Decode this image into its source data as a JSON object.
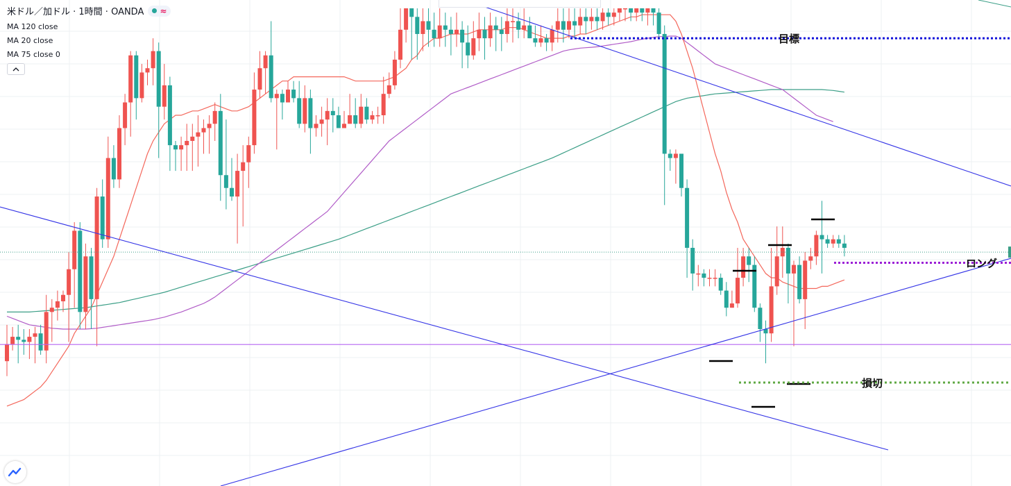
{
  "header": {
    "symbol_title": "米ドル／加ドル · 1時間 · OANDA",
    "status_icon": "dot-and-wave-icon",
    "indicators": [
      {
        "label": "MA 120 close"
      },
      {
        "label": "MA 20 close"
      },
      {
        "label": "MA 75 close 0"
      }
    ],
    "collapse_icon": "chevron-up-icon",
    "logo_icon": "tradingview-logo-icon"
  },
  "colors": {
    "up": "#ef5350",
    "down": "#26a69a",
    "ma20": "#f4675b",
    "ma75": "#b05bc7",
    "ma120": "#3a9e86",
    "trendline": "#3333e6",
    "support": "#b565f2",
    "target": "#1111d9",
    "long": "#9b1fd6",
    "stop": "#5fa843",
    "grid": "#eef0f3"
  },
  "chart_data": {
    "type": "candlestick",
    "yscale": {
      "top": 1.0,
      "bottom": 0.0
    },
    "annotations": [
      {
        "name": "target-line",
        "label": "目標",
        "style": "dotted",
        "y": 0.93
      },
      {
        "name": "long-line",
        "label": "ロング",
        "style": "dotted",
        "y": 0.405
      },
      {
        "name": "stop-line",
        "label": "損切",
        "style": "dotted",
        "y": 0.125
      }
    ],
    "support_level": 0.214,
    "current_price_level": 0.43,
    "candles": [
      [
        0.175,
        0.215,
        0.14,
        0.26
      ],
      [
        0.215,
        0.232,
        0.2,
        0.255
      ],
      [
        0.232,
        0.225,
        0.17,
        0.26
      ],
      [
        0.225,
        0.22,
        0.19,
        0.25
      ],
      [
        0.22,
        0.232,
        0.18,
        0.25
      ],
      [
        0.232,
        0.24,
        0.17,
        0.255
      ],
      [
        0.24,
        0.2,
        0.19,
        0.26
      ],
      [
        0.2,
        0.29,
        0.17,
        0.33
      ],
      [
        0.29,
        0.3,
        0.22,
        0.32
      ],
      [
        0.3,
        0.315,
        0.27,
        0.34
      ],
      [
        0.315,
        0.33,
        0.29,
        0.34
      ],
      [
        0.33,
        0.39,
        0.22,
        0.43
      ],
      [
        0.39,
        0.48,
        0.3,
        0.5
      ],
      [
        0.48,
        0.29,
        0.25,
        0.5
      ],
      [
        0.29,
        0.42,
        0.25,
        0.45
      ],
      [
        0.42,
        0.32,
        0.25,
        0.44
      ],
      [
        0.32,
        0.56,
        0.21,
        0.58
      ],
      [
        0.56,
        0.46,
        0.44,
        0.6
      ],
      [
        0.46,
        0.65,
        0.44,
        0.7
      ],
      [
        0.65,
        0.6,
        0.58,
        0.68
      ],
      [
        0.6,
        0.72,
        0.58,
        0.75
      ],
      [
        0.72,
        0.78,
        0.68,
        0.8
      ],
      [
        0.78,
        0.89,
        0.7,
        0.9
      ],
      [
        0.89,
        0.79,
        0.74,
        0.9
      ],
      [
        0.79,
        0.85,
        0.78,
        0.87
      ],
      [
        0.85,
        0.86,
        0.82,
        0.88
      ],
      [
        0.86,
        0.9,
        0.82,
        0.93
      ],
      [
        0.9,
        0.77,
        0.65,
        0.92
      ],
      [
        0.77,
        0.82,
        0.74,
        0.87
      ],
      [
        0.82,
        0.68,
        0.62,
        0.84
      ],
      [
        0.68,
        0.67,
        0.62,
        0.69
      ],
      [
        0.67,
        0.68,
        0.62,
        0.7
      ],
      [
        0.68,
        0.69,
        0.62,
        0.73
      ],
      [
        0.69,
        0.7,
        0.62,
        0.73
      ],
      [
        0.7,
        0.71,
        0.63,
        0.75
      ],
      [
        0.71,
        0.72,
        0.66,
        0.74
      ],
      [
        0.72,
        0.73,
        0.66,
        0.75
      ],
      [
        0.73,
        0.76,
        0.69,
        0.78
      ],
      [
        0.76,
        0.61,
        0.55,
        0.8
      ],
      [
        0.61,
        0.58,
        0.53,
        0.74
      ],
      [
        0.58,
        0.56,
        0.55,
        0.65
      ],
      [
        0.56,
        0.62,
        0.45,
        0.66
      ],
      [
        0.62,
        0.64,
        0.49,
        0.68
      ],
      [
        0.64,
        0.68,
        0.58,
        0.7
      ],
      [
        0.68,
        0.81,
        0.66,
        0.85
      ],
      [
        0.81,
        0.86,
        0.79,
        0.9
      ],
      [
        0.86,
        0.89,
        0.8,
        0.9
      ],
      [
        0.89,
        0.79,
        0.78,
        0.97
      ],
      [
        0.79,
        0.8,
        0.67,
        0.81
      ],
      [
        0.8,
        0.78,
        0.74,
        0.81
      ],
      [
        0.78,
        0.81,
        0.78,
        0.83
      ],
      [
        0.81,
        0.79,
        0.78,
        0.83
      ],
      [
        0.79,
        0.73,
        0.72,
        0.83
      ],
      [
        0.73,
        0.79,
        0.71,
        0.82
      ],
      [
        0.79,
        0.72,
        0.66,
        0.81
      ],
      [
        0.72,
        0.73,
        0.7,
        0.75
      ],
      [
        0.73,
        0.74,
        0.7,
        0.77
      ],
      [
        0.74,
        0.76,
        0.68,
        0.79
      ],
      [
        0.76,
        0.75,
        0.71,
        0.79
      ],
      [
        0.75,
        0.72,
        0.72,
        0.77
      ],
      [
        0.72,
        0.73,
        0.72,
        0.76
      ],
      [
        0.73,
        0.75,
        0.73,
        0.8
      ],
      [
        0.75,
        0.73,
        0.72,
        0.79
      ],
      [
        0.73,
        0.77,
        0.72,
        0.8
      ],
      [
        0.77,
        0.74,
        0.73,
        0.79
      ],
      [
        0.74,
        0.75,
        0.73,
        0.76
      ],
      [
        0.75,
        0.75,
        0.73,
        0.77
      ],
      [
        0.75,
        0.8,
        0.73,
        0.84
      ],
      [
        0.8,
        0.82,
        0.79,
        0.85
      ],
      [
        0.82,
        0.88,
        0.81,
        0.9
      ],
      [
        0.88,
        0.95,
        0.86,
        1.0
      ],
      [
        0.95,
        1.0,
        0.92,
        1.0
      ],
      [
        1.0,
        0.98,
        0.88,
        1.0
      ],
      [
        0.98,
        0.94,
        0.88,
        1.0
      ],
      [
        0.94,
        0.97,
        0.9,
        1.0
      ],
      [
        0.97,
        0.95,
        0.91,
        1.0
      ],
      [
        0.95,
        0.93,
        0.91,
        0.99
      ],
      [
        0.93,
        0.96,
        0.91,
        1.0
      ],
      [
        0.96,
        0.95,
        0.91,
        0.99
      ],
      [
        0.95,
        0.94,
        0.89,
        0.98
      ],
      [
        0.94,
        0.95,
        0.91,
        0.99
      ],
      [
        0.95,
        0.92,
        0.86,
        0.97
      ],
      [
        0.92,
        0.89,
        0.86,
        0.96
      ],
      [
        0.89,
        0.93,
        0.88,
        0.97
      ],
      [
        0.93,
        0.95,
        0.9,
        0.99
      ],
      [
        0.95,
        0.93,
        0.88,
        0.98
      ],
      [
        0.93,
        0.96,
        0.91,
        0.99
      ],
      [
        0.96,
        0.95,
        0.9,
        0.98
      ],
      [
        0.95,
        0.94,
        0.9,
        0.98
      ],
      [
        0.94,
        0.97,
        0.92,
        1.0
      ],
      [
        0.97,
        0.97,
        0.92,
        1.0
      ],
      [
        0.97,
        0.95,
        0.93,
        0.99
      ],
      [
        0.95,
        0.96,
        0.93,
        1.0
      ],
      [
        0.96,
        0.93,
        0.93,
        0.98
      ],
      [
        0.93,
        0.92,
        0.91,
        0.96
      ],
      [
        0.92,
        0.93,
        0.91,
        0.96
      ],
      [
        0.93,
        0.92,
        0.9,
        0.94
      ],
      [
        0.92,
        0.95,
        0.9,
        0.96
      ],
      [
        0.95,
        0.97,
        0.92,
        1.0
      ],
      [
        0.97,
        0.95,
        0.92,
        1.0
      ],
      [
        0.95,
        0.97,
        0.93,
        1.0
      ],
      [
        0.97,
        0.96,
        0.93,
        1.0
      ],
      [
        0.96,
        0.98,
        0.94,
        1.0
      ],
      [
        0.98,
        0.97,
        0.94,
        1.0
      ],
      [
        0.97,
        0.98,
        0.95,
        1.0
      ],
      [
        0.98,
        0.97,
        0.95,
        1.0
      ],
      [
        0.97,
        0.99,
        0.95,
        1.0
      ],
      [
        0.99,
        0.98,
        0.96,
        1.0
      ],
      [
        0.98,
        0.99,
        0.96,
        1.0
      ],
      [
        0.99,
        1.0,
        0.97,
        1.0
      ],
      [
        1.0,
        1.0,
        0.97,
        1.0
      ],
      [
        1.0,
        0.99,
        0.97,
        1.0
      ],
      [
        0.99,
        1.0,
        0.97,
        1.0
      ],
      [
        1.0,
        0.99,
        0.97,
        1.0
      ],
      [
        0.99,
        1.0,
        0.96,
        1.0
      ],
      [
        1.0,
        0.99,
        0.96,
        1.0
      ],
      [
        0.99,
        0.94,
        0.93,
        1.0
      ],
      [
        0.94,
        0.66,
        0.54,
        0.96
      ],
      [
        0.66,
        0.65,
        0.62,
        0.67
      ],
      [
        0.65,
        0.66,
        0.59,
        0.67
      ],
      [
        0.66,
        0.58,
        0.56,
        0.66
      ],
      [
        0.58,
        0.44,
        0.37,
        0.6
      ],
      [
        0.44,
        0.38,
        0.34,
        0.46
      ],
      [
        0.38,
        0.38,
        0.35,
        0.4
      ],
      [
        0.38,
        0.37,
        0.35,
        0.39
      ],
      [
        0.37,
        0.37,
        0.35,
        0.39
      ],
      [
        0.37,
        0.37,
        0.35,
        0.39
      ],
      [
        0.37,
        0.34,
        0.33,
        0.38
      ],
      [
        0.34,
        0.3,
        0.28,
        0.36
      ],
      [
        0.3,
        0.31,
        0.3,
        0.34
      ],
      [
        0.31,
        0.37,
        0.3,
        0.44
      ],
      [
        0.37,
        0.42,
        0.35,
        0.44
      ],
      [
        0.42,
        0.4,
        0.36,
        0.44
      ],
      [
        0.4,
        0.3,
        0.29,
        0.42
      ],
      [
        0.3,
        0.25,
        0.22,
        0.31
      ],
      [
        0.25,
        0.24,
        0.17,
        0.27
      ],
      [
        0.24,
        0.35,
        0.22,
        0.44
      ],
      [
        0.35,
        0.42,
        0.33,
        0.49
      ],
      [
        0.42,
        0.44,
        0.37,
        0.49
      ],
      [
        0.44,
        0.38,
        0.31,
        0.45
      ],
      [
        0.38,
        0.4,
        0.21,
        0.41
      ],
      [
        0.4,
        0.32,
        0.31,
        0.42
      ],
      [
        0.32,
        0.41,
        0.25,
        0.43
      ],
      [
        0.41,
        0.42,
        0.39,
        0.44
      ],
      [
        0.42,
        0.47,
        0.4,
        0.48
      ],
      [
        0.47,
        0.46,
        0.38,
        0.55
      ],
      [
        0.46,
        0.45,
        0.44,
        0.47
      ],
      [
        0.45,
        0.46,
        0.44,
        0.47
      ],
      [
        0.46,
        0.45,
        0.44,
        0.47
      ],
      [
        0.45,
        0.44,
        0.42,
        0.47
      ]
    ],
    "ma20": [
      0.07,
      0.075,
      0.08,
      0.085,
      0.095,
      0.105,
      0.115,
      0.13,
      0.15,
      0.17,
      0.19,
      0.21,
      0.24,
      0.26,
      0.28,
      0.3,
      0.33,
      0.36,
      0.39,
      0.42,
      0.46,
      0.5,
      0.54,
      0.58,
      0.62,
      0.66,
      0.69,
      0.71,
      0.73,
      0.74,
      0.75,
      0.75,
      0.755,
      0.76,
      0.76,
      0.765,
      0.77,
      0.775,
      0.77,
      0.765,
      0.76,
      0.76,
      0.765,
      0.77,
      0.78,
      0.79,
      0.8,
      0.81,
      0.82,
      0.83,
      0.83,
      0.84,
      0.84,
      0.84,
      0.84,
      0.84,
      0.84,
      0.84,
      0.84,
      0.84,
      0.84,
      0.835,
      0.83,
      0.83,
      0.83,
      0.83,
      0.83,
      0.83,
      0.835,
      0.84,
      0.85,
      0.86,
      0.88,
      0.89,
      0.91,
      0.92,
      0.93,
      0.93,
      0.935,
      0.94,
      0.94,
      0.94,
      0.94,
      0.945,
      0.95,
      0.95,
      0.95,
      0.95,
      0.95,
      0.955,
      0.955,
      0.955,
      0.95,
      0.945,
      0.94,
      0.935,
      0.93,
      0.93,
      0.93,
      0.93,
      0.935,
      0.935,
      0.94,
      0.94,
      0.945,
      0.95,
      0.955,
      0.96,
      0.965,
      0.97,
      0.975,
      0.98,
      0.98,
      0.985,
      0.985,
      0.985,
      0.985,
      0.985,
      0.985,
      0.97,
      0.94,
      0.9,
      0.86,
      0.81,
      0.76,
      0.71,
      0.66,
      0.62,
      0.57,
      0.53,
      0.5,
      0.46,
      0.44,
      0.42,
      0.4,
      0.38,
      0.37,
      0.37,
      0.36,
      0.355,
      0.35,
      0.345,
      0.345,
      0.345,
      0.345,
      0.35,
      0.35,
      0.355,
      0.36,
      0.365
    ],
    "ma75": [
      0.28,
      0.275,
      0.27,
      0.265,
      0.26,
      0.258,
      0.256,
      0.254,
      0.252,
      0.251,
      0.25,
      0.25,
      0.25,
      0.25,
      0.25,
      0.251,
      0.252,
      0.254,
      0.256,
      0.258,
      0.26,
      0.262,
      0.264,
      0.266,
      0.268,
      0.27,
      0.272,
      0.275,
      0.278,
      0.282,
      0.286,
      0.29,
      0.295,
      0.3,
      0.305,
      0.31,
      0.317,
      0.325,
      0.335,
      0.345,
      0.355,
      0.365,
      0.375,
      0.385,
      0.395,
      0.405,
      0.415,
      0.425,
      0.435,
      0.445,
      0.455,
      0.465,
      0.475,
      0.485,
      0.495,
      0.505,
      0.515,
      0.525,
      0.54,
      0.555,
      0.57,
      0.585,
      0.6,
      0.615,
      0.63,
      0.645,
      0.66,
      0.675,
      0.69,
      0.7,
      0.71,
      0.72,
      0.73,
      0.74,
      0.75,
      0.76,
      0.77,
      0.78,
      0.79,
      0.8,
      0.805,
      0.81,
      0.815,
      0.82,
      0.825,
      0.83,
      0.835,
      0.84,
      0.845,
      0.85,
      0.855,
      0.86,
      0.865,
      0.87,
      0.875,
      0.88,
      0.885,
      0.89,
      0.895,
      0.9,
      0.903,
      0.905,
      0.907,
      0.908,
      0.909,
      0.91,
      0.912,
      0.914,
      0.916,
      0.918,
      0.92,
      0.922,
      0.925,
      0.928,
      0.93,
      0.932,
      0.934,
      0.934,
      0.935,
      0.935,
      0.93,
      0.92,
      0.91,
      0.9,
      0.89,
      0.88,
      0.87,
      0.865,
      0.86,
      0.855,
      0.85,
      0.845,
      0.84,
      0.835,
      0.83,
      0.825,
      0.82,
      0.815,
      0.81,
      0.8,
      0.79,
      0.78,
      0.77,
      0.76,
      0.75,
      0.745,
      0.74,
      0.735
    ],
    "ma120": [
      0.29,
      0.29,
      0.29,
      0.29,
      0.29,
      0.291,
      0.292,
      0.293,
      0.294,
      0.295,
      0.296,
      0.297,
      0.298,
      0.299,
      0.3,
      0.302,
      0.304,
      0.306,
      0.308,
      0.31,
      0.312,
      0.315,
      0.318,
      0.321,
      0.324,
      0.327,
      0.33,
      0.333,
      0.336,
      0.34,
      0.344,
      0.348,
      0.352,
      0.356,
      0.36,
      0.364,
      0.368,
      0.372,
      0.376,
      0.38,
      0.384,
      0.388,
      0.392,
      0.396,
      0.4,
      0.404,
      0.408,
      0.412,
      0.416,
      0.42,
      0.424,
      0.428,
      0.432,
      0.436,
      0.44,
      0.444,
      0.448,
      0.452,
      0.456,
      0.46,
      0.465,
      0.47,
      0.475,
      0.48,
      0.485,
      0.49,
      0.495,
      0.5,
      0.505,
      0.51,
      0.515,
      0.52,
      0.525,
      0.53,
      0.535,
      0.54,
      0.545,
      0.55,
      0.555,
      0.56,
      0.565,
      0.57,
      0.575,
      0.58,
      0.585,
      0.59,
      0.595,
      0.6,
      0.605,
      0.61,
      0.615,
      0.62,
      0.625,
      0.63,
      0.635,
      0.64,
      0.645,
      0.65,
      0.656,
      0.662,
      0.668,
      0.674,
      0.68,
      0.686,
      0.692,
      0.698,
      0.704,
      0.71,
      0.716,
      0.722,
      0.728,
      0.734,
      0.74,
      0.746,
      0.752,
      0.758,
      0.764,
      0.77,
      0.776,
      0.782,
      0.786,
      0.79,
      0.792,
      0.794,
      0.796,
      0.798,
      0.8,
      0.801,
      0.802,
      0.803,
      0.804,
      0.805,
      0.806,
      0.807,
      0.808,
      0.809,
      0.81,
      0.81,
      0.81,
      0.81,
      0.81,
      0.81,
      0.81,
      0.81,
      0.81,
      0.81,
      0.809,
      0.808,
      0.806,
      0.804
    ]
  }
}
